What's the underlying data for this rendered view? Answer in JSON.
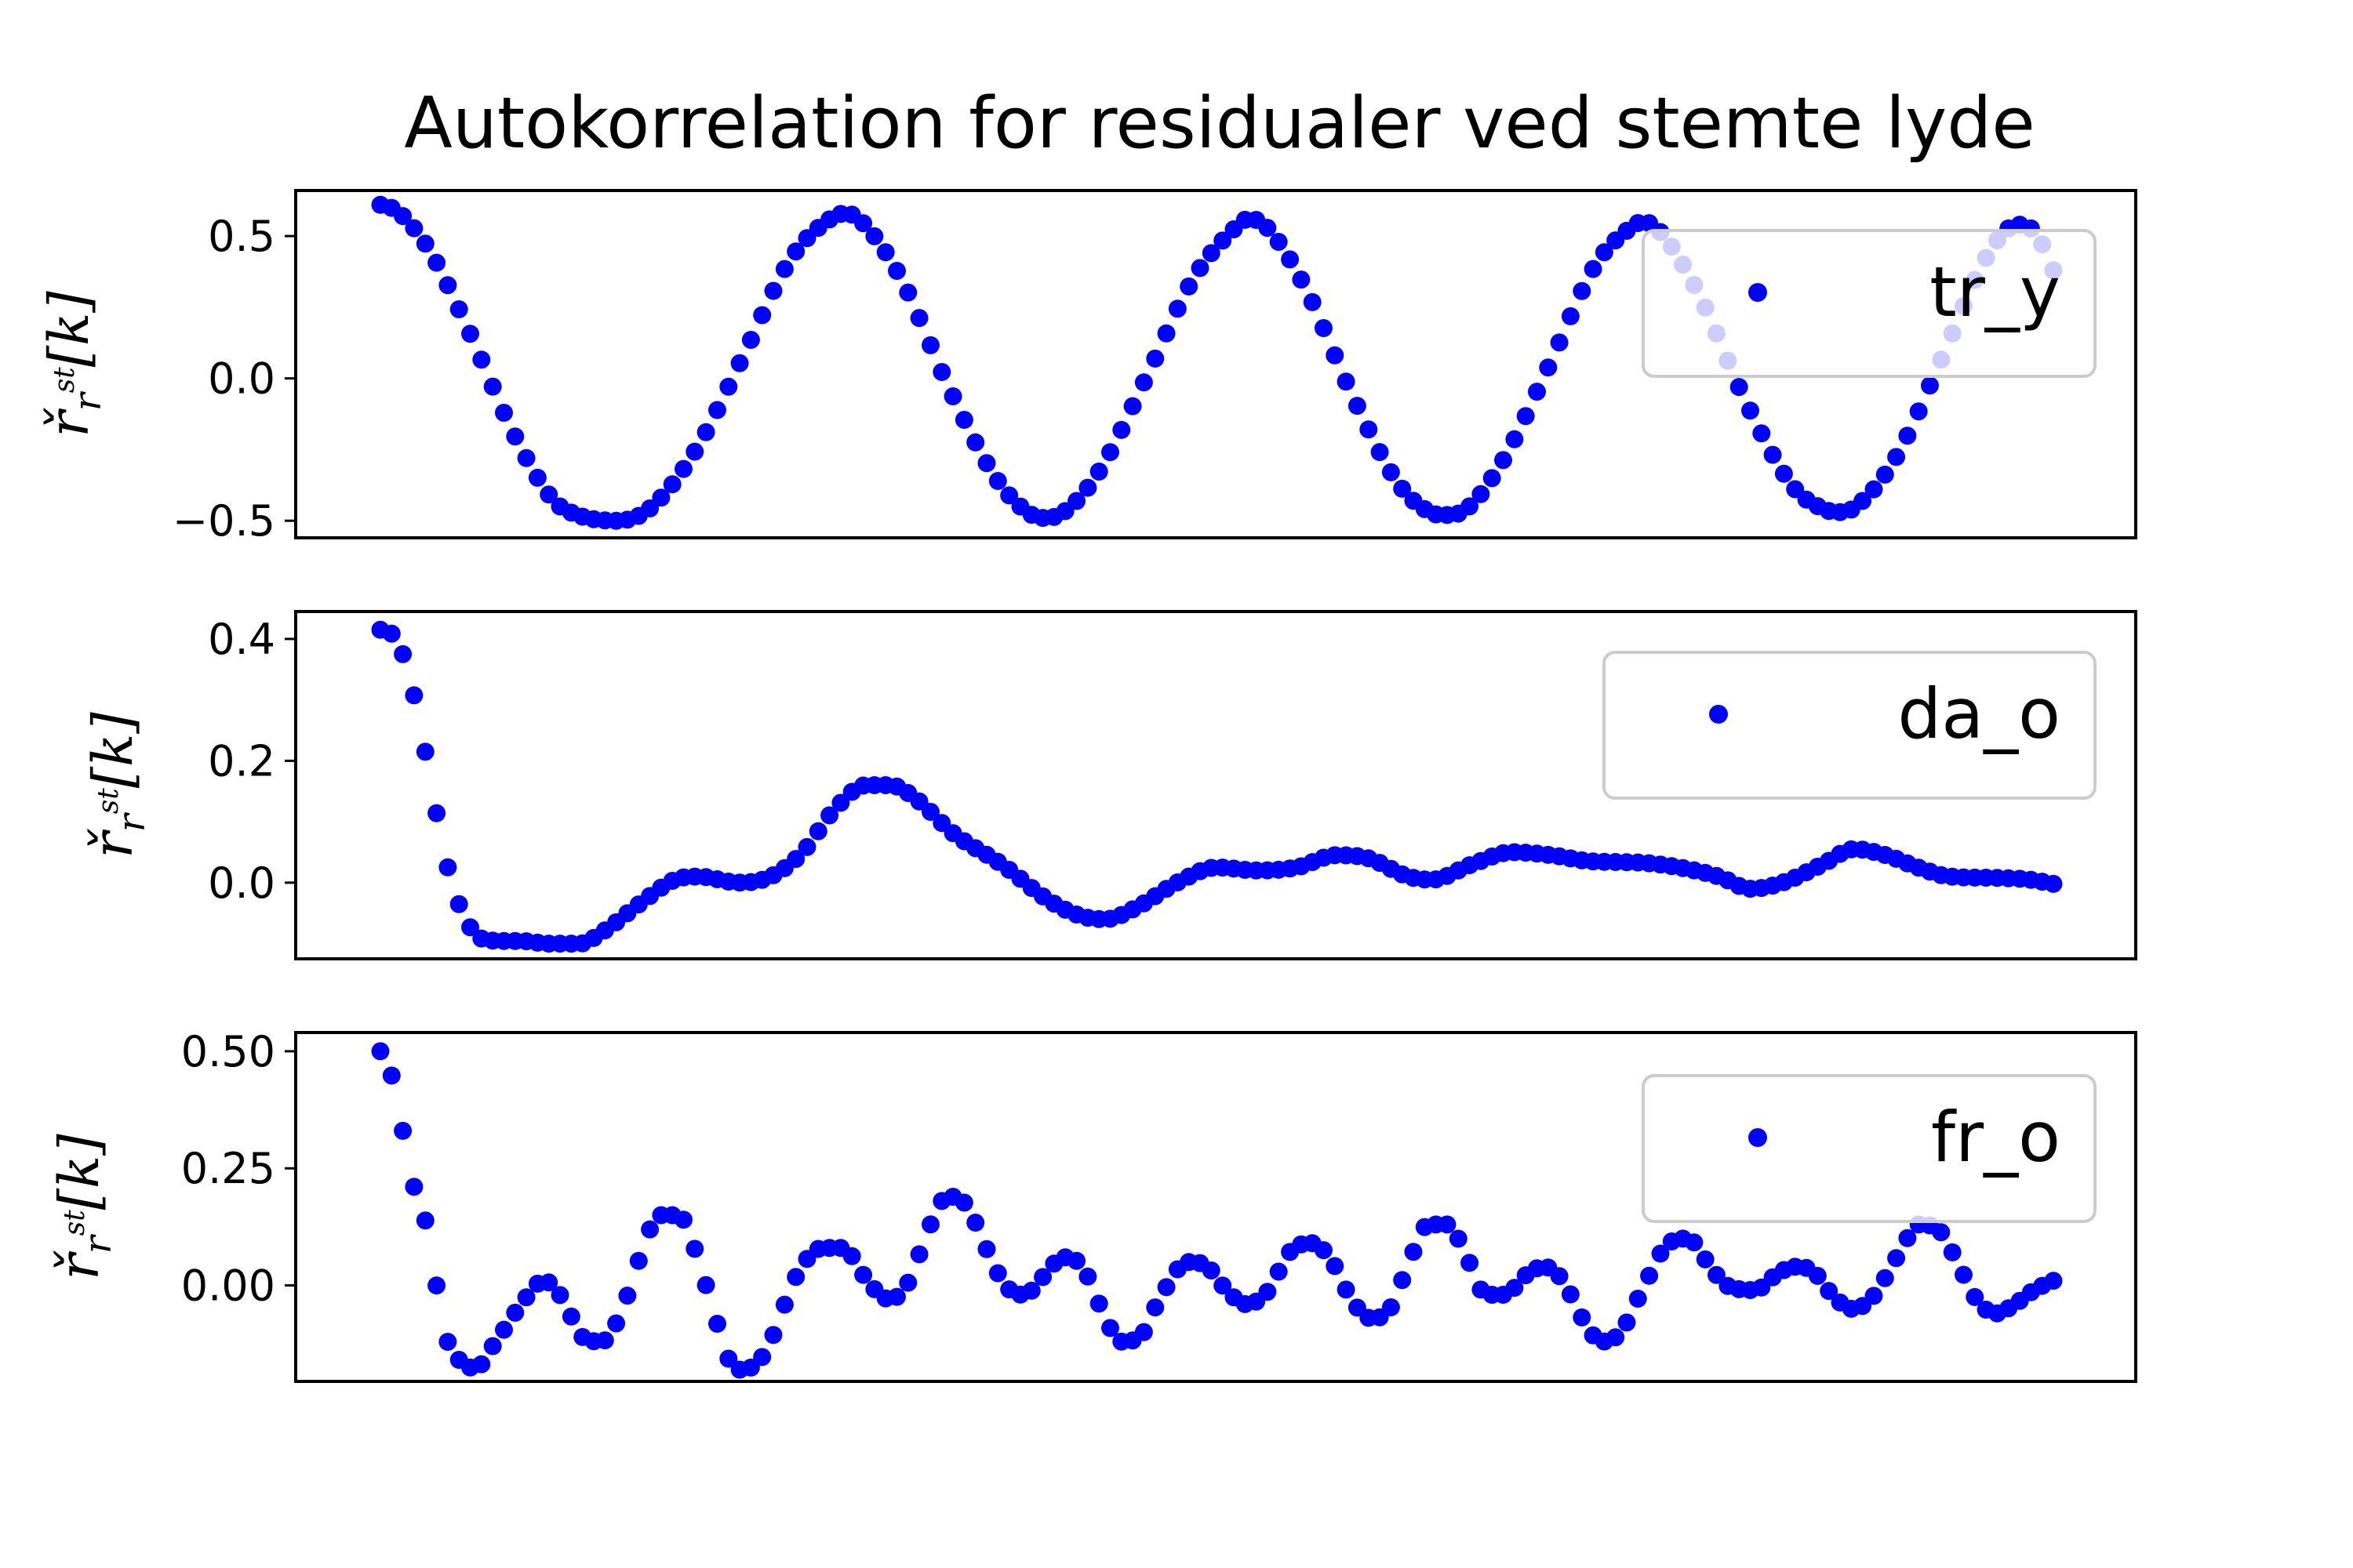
{
  "chart_data": {
    "type": "scatter",
    "title": "Autokorrelation for residualer ved stemte lyde",
    "marker_color": "#0000ff",
    "axes_color": "#000000",
    "xticks": "none",
    "n_points": 150,
    "subplots": [
      {
        "legend_label": "tr_y",
        "legend_position": "upper right",
        "ylabel": "ř_r^st[k]",
        "ylim": [
          -0.56,
          0.66
        ],
        "yticks": [
          -0.5,
          0.0,
          0.5
        ],
        "ytick_labels": [
          "−0.5",
          "0.0",
          "0.5"
        ],
        "keypoints": [
          [
            0,
            0.61
          ],
          [
            2,
            0.59
          ],
          [
            6,
            0.46
          ],
          [
            11,
            0.18
          ],
          [
            17,
            -0.2
          ],
          [
            22,
            -0.43
          ],
          [
            25,
            -0.48
          ],
          [
            30,
            -0.5
          ],
          [
            34,
            -0.46
          ],
          [
            40,
            -0.25
          ],
          [
            46,
            0.08
          ],
          [
            52,
            0.42
          ],
          [
            57,
            0.56
          ],
          [
            59,
            0.58
          ],
          [
            61,
            0.55
          ],
          [
            66,
            0.35
          ],
          [
            72,
            -0.03
          ],
          [
            78,
            -0.35
          ],
          [
            82,
            -0.47
          ],
          [
            84,
            -0.49
          ],
          [
            86,
            -0.48
          ],
          [
            91,
            -0.33
          ],
          [
            97,
            0.0
          ],
          [
            103,
            0.35
          ],
          [
            108,
            0.52
          ],
          [
            110,
            0.56
          ],
          [
            112,
            0.54
          ],
          [
            117,
            0.33
          ],
          [
            123,
            -0.05
          ],
          [
            129,
            -0.37
          ],
          [
            133,
            -0.47
          ],
          [
            135,
            -0.48
          ],
          [
            137,
            -0.47
          ],
          [
            142,
            -0.3
          ],
          [
            148,
            0.04
          ],
          [
            154,
            0.4
          ],
          [
            158,
            0.52
          ],
          [
            160,
            0.55
          ],
          [
            162,
            0.52
          ],
          [
            167,
            0.3
          ],
          [
            173,
            -0.08
          ],
          [
            179,
            -0.38
          ],
          [
            183,
            -0.46
          ],
          [
            185,
            -0.47
          ],
          [
            187,
            -0.45
          ],
          [
            192,
            -0.28
          ],
          [
            198,
            0.08
          ],
          [
            203,
            0.4
          ],
          [
            206,
            0.52
          ],
          [
            208,
            0.54
          ],
          [
            210,
            0.5
          ],
          [
            212,
            0.38
          ]
        ]
      },
      {
        "legend_label": "da_o",
        "legend_position": "upper right",
        "ylabel": "ř_r^st[k]",
        "ylim": [
          -0.125,
          0.445
        ],
        "yticks": [
          0.0,
          0.2,
          0.4
        ],
        "ytick_labels": [
          "0.0",
          "0.2",
          "0.4"
        ],
        "keypoints": [
          [
            0,
            0.415
          ],
          [
            2,
            0.4
          ],
          [
            4,
            0.32
          ],
          [
            6,
            0.19
          ],
          [
            8,
            0.05
          ],
          [
            10,
            -0.04
          ],
          [
            12,
            -0.085
          ],
          [
            14,
            -0.095
          ],
          [
            18,
            -0.096
          ],
          [
            21,
            -0.1
          ],
          [
            25,
            -0.1
          ],
          [
            28,
            -0.08
          ],
          [
            33,
            -0.03
          ],
          [
            37,
            0.005
          ],
          [
            40,
            0.01
          ],
          [
            45,
            0.0
          ],
          [
            49,
            0.01
          ],
          [
            53,
            0.05
          ],
          [
            57,
            0.12
          ],
          [
            61,
            0.16
          ],
          [
            64,
            0.16
          ],
          [
            67,
            0.14
          ],
          [
            72,
            0.08
          ],
          [
            78,
            0.03
          ],
          [
            84,
            -0.03
          ],
          [
            88,
            -0.055
          ],
          [
            91,
            -0.06
          ],
          [
            95,
            -0.04
          ],
          [
            100,
            0.0
          ],
          [
            105,
            0.025
          ],
          [
            110,
            0.02
          ],
          [
            115,
            0.025
          ],
          [
            120,
            0.045
          ],
          [
            124,
            0.04
          ],
          [
            129,
            0.01
          ],
          [
            132,
            0.005
          ],
          [
            137,
            0.03
          ],
          [
            142,
            0.05
          ],
          [
            147,
            0.045
          ],
          [
            152,
            0.035
          ],
          [
            158,
            0.033
          ],
          [
            163,
            0.025
          ],
          [
            168,
            0.01
          ],
          [
            172,
            -0.01
          ],
          [
            176,
            0.0
          ],
          [
            181,
            0.03
          ],
          [
            185,
            0.055
          ],
          [
            189,
            0.045
          ],
          [
            193,
            0.025
          ],
          [
            197,
            0.01
          ],
          [
            202,
            0.008
          ],
          [
            207,
            0.005
          ],
          [
            210,
            -0.002
          ]
        ]
      },
      {
        "legend_label": "fr_o",
        "legend_position": "upper right",
        "ylabel": "ř_r^st[k]",
        "ylim": [
          -0.205,
          0.54
        ],
        "yticks": [
          0.0,
          0.25,
          0.5
        ],
        "ytick_labels": [
          "0.00",
          "0.25",
          "0.50"
        ],
        "keypoints": [
          [
            0,
            0.5
          ],
          [
            1,
            0.46
          ],
          [
            2,
            0.37
          ],
          [
            3,
            0.25
          ],
          [
            5,
            0.11
          ],
          [
            6,
            -0.02
          ],
          [
            7,
            -0.12
          ],
          [
            9,
            -0.17
          ],
          [
            10,
            -0.18
          ],
          [
            11,
            -0.15
          ],
          [
            13,
            -0.09
          ],
          [
            15,
            -0.03
          ],
          [
            17,
            0.01
          ],
          [
            19,
            -0.03
          ],
          [
            21,
            -0.11
          ],
          [
            23,
            -0.12
          ],
          [
            25,
            -0.06
          ],
          [
            27,
            0.06
          ],
          [
            29,
            0.15
          ],
          [
            31,
            0.15
          ],
          [
            33,
            0.06
          ],
          [
            35,
            -0.08
          ],
          [
            37,
            -0.18
          ],
          [
            39,
            -0.17
          ],
          [
            41,
            -0.1
          ],
          [
            43,
            0.01
          ],
          [
            46,
            0.08
          ],
          [
            48,
            0.08
          ],
          [
            51,
            0.0
          ],
          [
            53,
            -0.03
          ],
          [
            55,
            0.01
          ],
          [
            57,
            0.12
          ],
          [
            59,
            0.19
          ],
          [
            61,
            0.17
          ],
          [
            63,
            0.08
          ],
          [
            65,
            0.0
          ],
          [
            67,
            -0.02
          ],
          [
            69,
            0.02
          ],
          [
            71,
            0.06
          ],
          [
            73,
            0.04
          ],
          [
            75,
            -0.05
          ],
          [
            77,
            -0.12
          ],
          [
            79,
            -0.11
          ],
          [
            81,
            -0.03
          ],
          [
            84,
            0.05
          ],
          [
            86,
            0.04
          ],
          [
            88,
            -0.01
          ],
          [
            90,
            -0.04
          ],
          [
            92,
            -0.02
          ],
          [
            95,
            0.08
          ],
          [
            97,
            0.09
          ],
          [
            99,
            0.05
          ],
          [
            101,
            -0.03
          ],
          [
            103,
            -0.07
          ],
          [
            105,
            -0.05
          ],
          [
            107,
            0.05
          ],
          [
            109,
            0.13
          ],
          [
            111,
            0.13
          ],
          [
            113,
            0.06
          ],
          [
            115,
            -0.02
          ],
          [
            117,
            -0.02
          ],
          [
            119,
            0.02
          ],
          [
            121,
            0.04
          ],
          [
            123,
            0.01
          ],
          [
            125,
            -0.07
          ],
          [
            127,
            -0.12
          ],
          [
            129,
            -0.1
          ],
          [
            131,
            -0.02
          ],
          [
            134,
            0.09
          ],
          [
            136,
            0.1
          ],
          [
            138,
            0.05
          ],
          [
            140,
            0.0
          ],
          [
            143,
            -0.01
          ],
          [
            145,
            0.02
          ],
          [
            147,
            0.04
          ],
          [
            149,
            0.03
          ],
          [
            151,
            -0.02
          ],
          [
            153,
            -0.05
          ],
          [
            155,
            -0.03
          ],
          [
            158,
            0.07
          ],
          [
            160,
            0.13
          ],
          [
            162,
            0.12
          ],
          [
            164,
            0.05
          ],
          [
            166,
            -0.03
          ],
          [
            168,
            -0.06
          ],
          [
            170,
            -0.04
          ],
          [
            172,
            -0.01
          ],
          [
            174,
            0.01
          ]
        ]
      }
    ]
  }
}
